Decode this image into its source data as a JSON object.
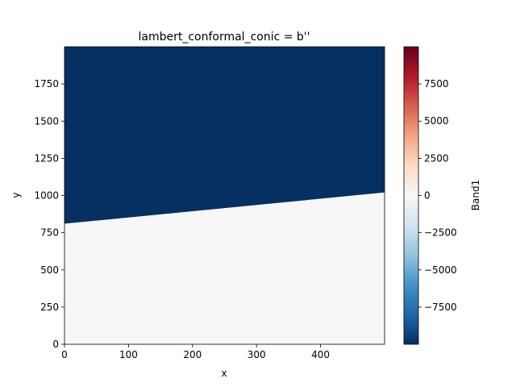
{
  "chart_data": {
    "type": "heatmap",
    "title": "lambert_conformal_conic = b''",
    "xlabel": "x",
    "ylabel": "y",
    "xlim": [
      0,
      500
    ],
    "ylim": [
      0,
      2000
    ],
    "x_ticks": [
      0,
      100,
      200,
      300,
      400
    ],
    "y_ticks": [
      0,
      250,
      500,
      750,
      1000,
      1250,
      1500,
      1750
    ],
    "regions": [
      {
        "label": "upper",
        "value": -9999,
        "boundary_left_y": 810,
        "boundary_right_y": 1020
      },
      {
        "label": "lower",
        "value": 0
      }
    ],
    "colorbar": {
      "label": "Band1",
      "colormap": "RdBu_r",
      "range": [
        -9999,
        9999
      ],
      "ticks": [
        -7500,
        -5000,
        -2500,
        0,
        2500,
        5000,
        7500
      ],
      "colors": [
        "#053061",
        "#2166ac",
        "#4393c3",
        "#92c5de",
        "#d1e5f0",
        "#f7f7f7",
        "#fddbc7",
        "#f4a582",
        "#d6604d",
        "#b2182b",
        "#67001f"
      ]
    }
  }
}
